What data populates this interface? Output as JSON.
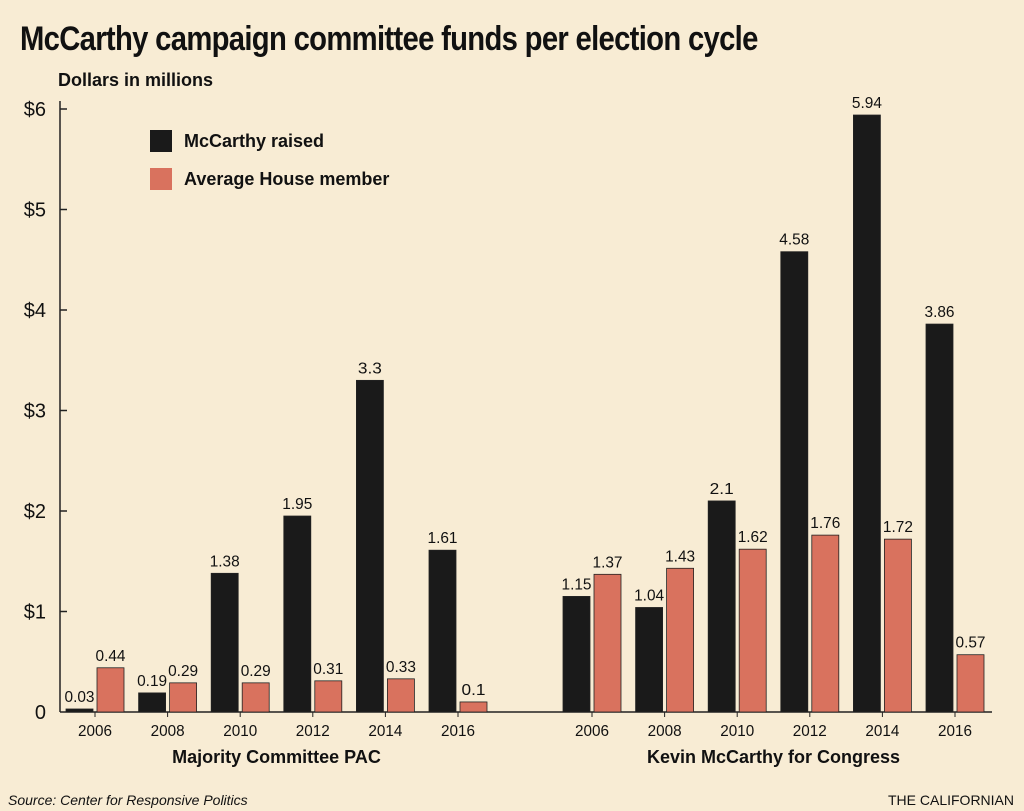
{
  "title": "McCarthy campaign committee funds per election cycle",
  "subtitle": "Dollars in millions",
  "source": "Source: Center for Responsive Politics",
  "credit": "THE CALIFORNIAN",
  "colors": {
    "raised": "#1a1a1a",
    "average": "#d9725e",
    "background": "#f8ecd4"
  },
  "chart_data": {
    "type": "bar",
    "ylim": [
      0,
      6
    ],
    "yticks": [
      "0",
      "$1",
      "$2",
      "$3",
      "$4",
      "$5",
      "$6"
    ],
    "legend": [
      "McCarthy raised",
      "Average House member"
    ],
    "legend_position": "top-left",
    "grid": false,
    "groups": [
      {
        "name": "Majority Committee PAC",
        "categories": [
          "2006",
          "2008",
          "2010",
          "2012",
          "2014",
          "2016"
        ],
        "series": [
          {
            "name": "McCarthy raised",
            "values": [
              0.03,
              0.19,
              1.38,
              1.95,
              3.3,
              1.61
            ],
            "labels": [
              "0.03",
              "0.19",
              "1.38",
              "1.95",
              "3.3",
              "1.61"
            ]
          },
          {
            "name": "Average House member",
            "values": [
              0.44,
              0.29,
              0.29,
              0.31,
              0.33,
              0.1
            ],
            "labels": [
              "0.44",
              "0.29",
              "0.29",
              "0.31",
              "0.33",
              "0.1"
            ]
          }
        ]
      },
      {
        "name": "Kevin McCarthy for Congress",
        "categories": [
          "2006",
          "2008",
          "2010",
          "2012",
          "2014",
          "2016"
        ],
        "series": [
          {
            "name": "McCarthy raised",
            "values": [
              1.15,
              1.04,
              2.1,
              4.58,
              5.94,
              3.86
            ],
            "labels": [
              "1.15",
              "1.04",
              "2.1",
              "4.58",
              "5.94",
              "3.86"
            ]
          },
          {
            "name": "Average House member",
            "values": [
              1.37,
              1.43,
              1.62,
              1.76,
              1.72,
              0.57
            ],
            "labels": [
              "1.37",
              "1.43",
              "1.62",
              "1.76",
              "1.72",
              "0.57"
            ]
          }
        ]
      }
    ]
  }
}
